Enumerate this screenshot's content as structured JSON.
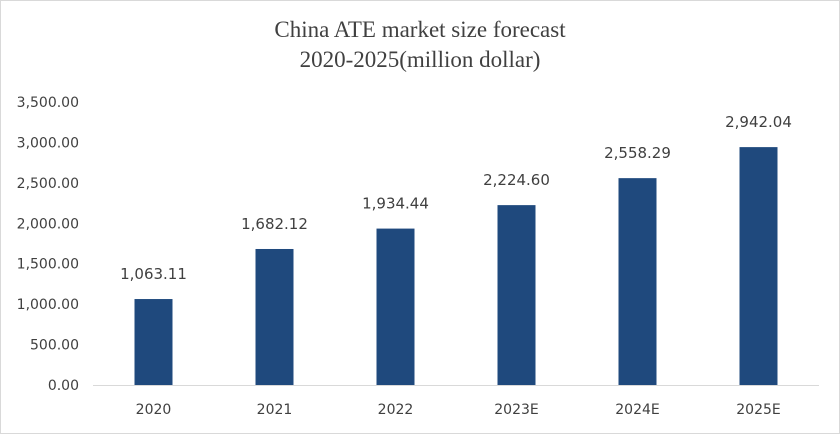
{
  "chart_data": {
    "type": "bar",
    "title": "China ATE market size forecast",
    "subtitle": "2020-2025(million dollar)",
    "categories": [
      "2020",
      "2021",
      "2022",
      "2023E",
      "2024E",
      "2025E"
    ],
    "values": [
      1063.11,
      1682.12,
      1934.44,
      2224.6,
      2558.29,
      2942.04
    ],
    "data_labels": [
      "1,063.11",
      "1,682.12",
      "1,934.44",
      "2,224.60",
      "2,558.29",
      "2,942.04"
    ],
    "y_ticks": [
      0,
      500,
      1000,
      1500,
      2000,
      2500,
      3000,
      3500
    ],
    "y_tick_labels": [
      "0.00",
      "500.00",
      "1,000.00",
      "1,500.00",
      "2,000.00",
      "2,500.00",
      "3,000.00",
      "3,500.00"
    ],
    "ylim": [
      0,
      3500
    ],
    "xlabel": "",
    "ylabel": "",
    "grid": false,
    "legend": "none",
    "bar_color": "#1f497d",
    "axis_color": "#d9d9d9"
  }
}
